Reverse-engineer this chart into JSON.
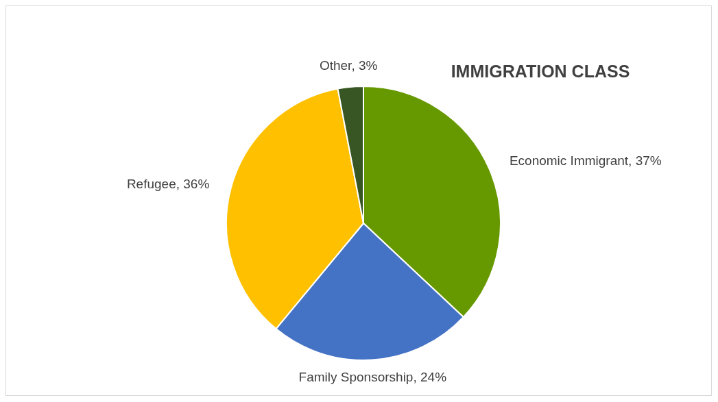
{
  "chart_data": {
    "type": "pie",
    "title": "IMMIGRATION CLASS",
    "categories": [
      "Economic Immigrant",
      "Family Sponsorship",
      "Refugee",
      "Other"
    ],
    "values": [
      37,
      24,
      36,
      3
    ],
    "value_labels": [
      "37%",
      "24%",
      "36%",
      "3%"
    ],
    "colors": [
      "#669900",
      "#4472c4",
      "#ffc000",
      "#375623"
    ]
  }
}
